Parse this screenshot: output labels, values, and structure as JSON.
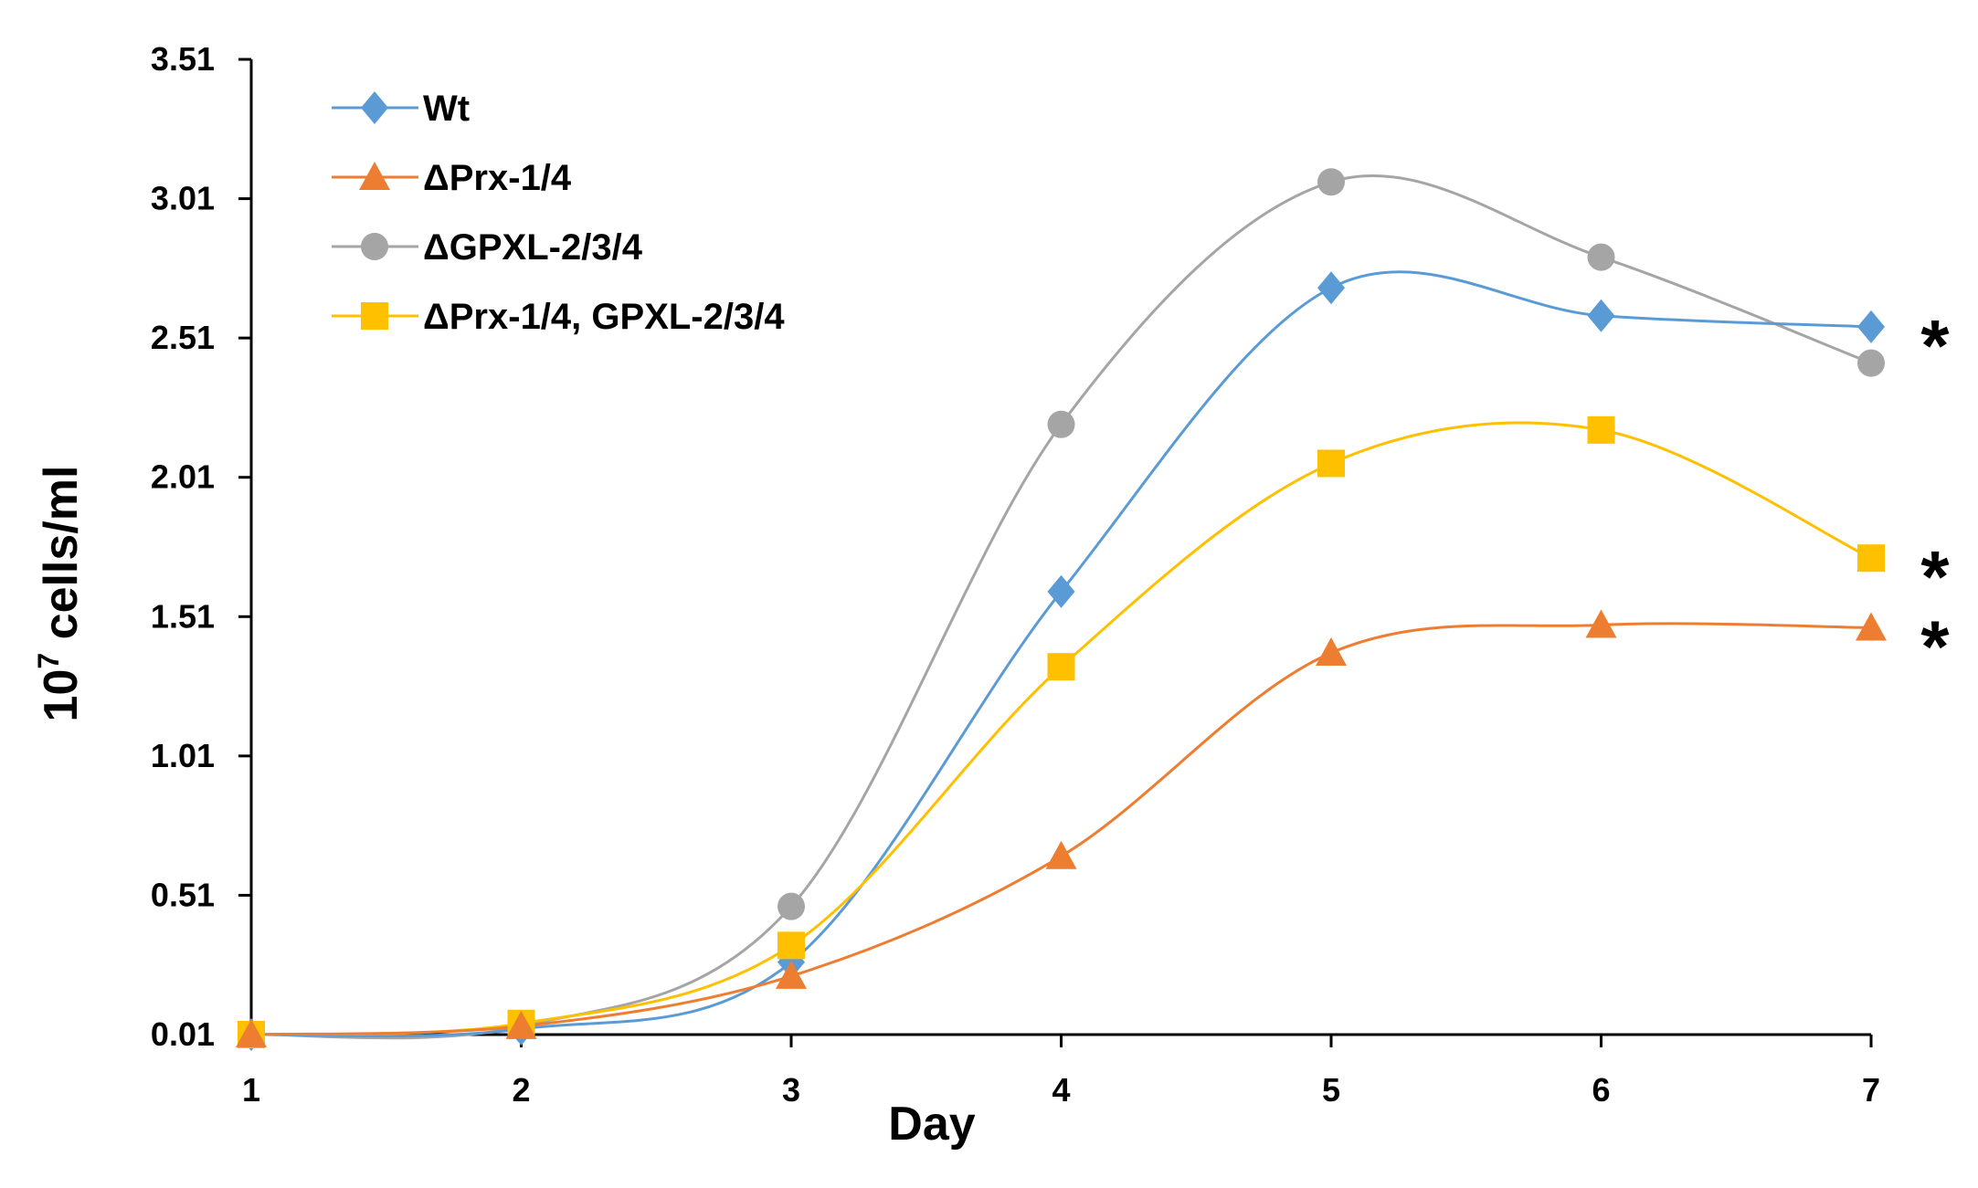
{
  "chart_data": {
    "type": "line",
    "title": "",
    "xlabel": "Day",
    "ylabel_base": "10",
    "ylabel_exp": "7",
    "ylabel_rest": " cells/ml",
    "x": [
      1,
      2,
      3,
      4,
      5,
      6,
      7
    ],
    "x_tick_labels": [
      "1",
      "2",
      "3",
      "4",
      "5",
      "6",
      "7"
    ],
    "ylim": [
      0.01,
      3.51
    ],
    "y_ticks": [
      0.01,
      0.51,
      1.01,
      1.51,
      2.01,
      2.51,
      3.01,
      3.51
    ],
    "y_tick_labels": [
      "0.01",
      "0.51",
      "1.01",
      "1.51",
      "2.01",
      "2.51",
      "3.01",
      "3.51"
    ],
    "grid": false,
    "legend_position": "top-left",
    "series": [
      {
        "name": "Wt",
        "color": "#5B9BD5",
        "marker": "diamond",
        "values": [
          0.01,
          0.03,
          0.27,
          1.6,
          2.69,
          2.59,
          2.55
        ]
      },
      {
        "name": "ΔPrx-1/4",
        "color": "#ED7D31",
        "marker": "triangle",
        "values": [
          0.01,
          0.04,
          0.22,
          0.65,
          1.38,
          1.48,
          1.47
        ]
      },
      {
        "name": "ΔGPXL-2/3/4",
        "color": "#A5A5A5",
        "marker": "circle",
        "values": [
          0.01,
          0.04,
          0.47,
          2.2,
          3.07,
          2.8,
          2.42
        ]
      },
      {
        "name": "ΔPrx-1/4, GPXL-2/3/4",
        "color": "#FFC000",
        "marker": "square",
        "values": [
          0.01,
          0.05,
          0.33,
          1.33,
          2.06,
          2.18,
          1.72
        ]
      }
    ],
    "annotations": [
      {
        "text": "*",
        "series": "Wt"
      },
      {
        "text": "*",
        "series": "ΔPrx-1/4, GPXL-2/3/4"
      },
      {
        "text": "*",
        "series": "ΔPrx-1/4"
      }
    ]
  }
}
